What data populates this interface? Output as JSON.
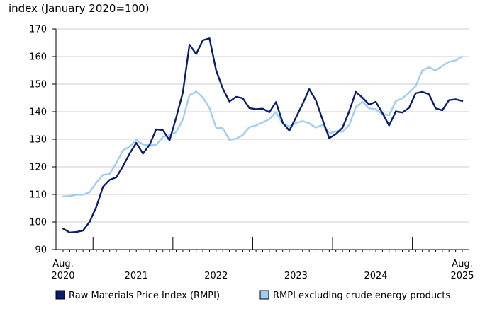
{
  "chart_data": {
    "type": "line",
    "ylabel": "index (January 2020=100)",
    "ylim": [
      90,
      170
    ],
    "yticks": [
      90,
      100,
      110,
      120,
      130,
      140,
      150,
      160,
      170
    ],
    "x_start": "2020-08",
    "x_end": "2025-08",
    "x_tick_labels": [
      {
        "month": "2020-08",
        "lines": [
          "Aug.",
          "2020"
        ]
      },
      {
        "month": "2021-07",
        "lines": [
          "2021"
        ]
      },
      {
        "month": "2022-07",
        "lines": [
          "2022"
        ]
      },
      {
        "month": "2023-07",
        "lines": [
          "2023"
        ]
      },
      {
        "month": "2024-07",
        "lines": [
          "2024"
        ]
      },
      {
        "month": "2025-08",
        "lines": [
          "Aug.",
          "2025"
        ]
      }
    ],
    "year_separators": [
      "2021-01",
      "2022-01",
      "2023-01",
      "2024-01",
      "2025-01"
    ],
    "legend_position": "bottom",
    "x": [
      "2020-08",
      "2020-09",
      "2020-10",
      "2020-11",
      "2020-12",
      "2021-01",
      "2021-02",
      "2021-03",
      "2021-04",
      "2021-05",
      "2021-06",
      "2021-07",
      "2021-08",
      "2021-09",
      "2021-10",
      "2021-11",
      "2021-12",
      "2022-01",
      "2022-02",
      "2022-03",
      "2022-04",
      "2022-05",
      "2022-06",
      "2022-07",
      "2022-08",
      "2022-09",
      "2022-10",
      "2022-11",
      "2022-12",
      "2023-01",
      "2023-02",
      "2023-03",
      "2023-04",
      "2023-05",
      "2023-06",
      "2023-07",
      "2023-08",
      "2023-09",
      "2023-10",
      "2023-11",
      "2023-12",
      "2024-01",
      "2024-02",
      "2024-03",
      "2024-04",
      "2024-05",
      "2024-06",
      "2024-07",
      "2024-08",
      "2024-09",
      "2024-10",
      "2024-11",
      "2024-12",
      "2025-01",
      "2025-02",
      "2025-03",
      "2025-04",
      "2025-05",
      "2025-06",
      "2025-07",
      "2025-08"
    ],
    "series": [
      {
        "name": "Raw Materials Price Index (RMPI)",
        "color": "#0a1e6e",
        "values": [
          97.6,
          96.2,
          96.4,
          96.9,
          100.1,
          105.5,
          112.8,
          115.3,
          116.2,
          120.2,
          124.8,
          128.7,
          124.8,
          128.0,
          133.6,
          133.3,
          129.6,
          137.9,
          147.0,
          164.3,
          160.9,
          165.9,
          166.6,
          155.0,
          148.4,
          143.7,
          145.4,
          144.9,
          141.3,
          140.9,
          141.1,
          139.8,
          143.5,
          136.1,
          133.1,
          137.9,
          142.8,
          148.2,
          144.1,
          137.1,
          130.4,
          131.9,
          134.2,
          140.1,
          147.2,
          145.1,
          142.6,
          143.6,
          139.5,
          135.0,
          140.1,
          139.7,
          141.4,
          146.7,
          147.2,
          146.3,
          141.2,
          140.5,
          144.2,
          144.5,
          143.9
        ]
      },
      {
        "name": "RMPI excluding crude energy products",
        "color": "#9fcdf3",
        "values": [
          109.3,
          109.4,
          109.9,
          109.9,
          110.8,
          114.3,
          117.1,
          117.4,
          121.4,
          126.0,
          127.3,
          129.7,
          128.1,
          127.8,
          128.0,
          130.8,
          131.5,
          132.6,
          137.2,
          146.0,
          147.3,
          145.2,
          141.3,
          134.2,
          134.0,
          129.8,
          130.2,
          131.5,
          134.4,
          135.0,
          136.1,
          137.3,
          139.9,
          135.6,
          134.6,
          135.9,
          136.6,
          135.8,
          134.2,
          135.2,
          132.1,
          132.9,
          132.7,
          135.1,
          141.7,
          143.6,
          141.2,
          140.9,
          139.1,
          138.7,
          143.8,
          144.9,
          146.9,
          149.3,
          155.0,
          156.1,
          154.9,
          156.6,
          158.1,
          158.6,
          160.1
        ]
      }
    ]
  }
}
